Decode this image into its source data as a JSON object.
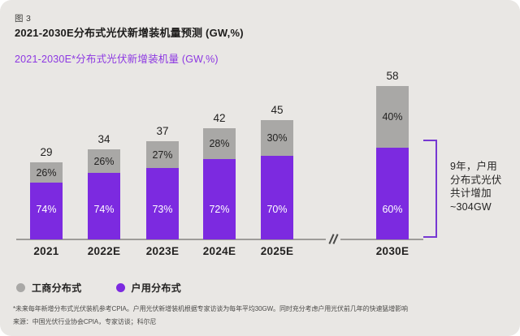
{
  "figure_label": "图 3",
  "title": "2021-2030E分布式光伏新增装机量预测 (GW,%)",
  "subtitle": "2021-2030E*分布式光伏新增装机量 (GW,%)",
  "chart_data": {
    "type": "bar",
    "stacked": true,
    "categories": [
      "2021",
      "2022E",
      "2023E",
      "2024E",
      "2025E",
      "2030E"
    ],
    "totals": [
      29,
      34,
      37,
      42,
      45,
      58
    ],
    "series": [
      {
        "name": "户用分布式",
        "color": "#7c2ae0",
        "pct": [
          74,
          74,
          73,
          72,
          70,
          60
        ]
      },
      {
        "name": "工商分布式",
        "color": "#a9a8a6",
        "pct": [
          26,
          26,
          27,
          28,
          30,
          40
        ]
      }
    ],
    "unit": "GW",
    "value_axis_hidden": true,
    "axis_break_between": [
      "2025E",
      "2030E"
    ],
    "legend_position": "bottom-left",
    "annotation_text": "9年，户用分布式光伏共计增加~304GW"
  },
  "annotation": {
    "text": "9年，户用\n分布式光伏\n共计增加\n~304GW"
  },
  "legend": [
    {
      "label": "工商分布式",
      "color": "#a9a8a6"
    },
    {
      "label": "户用分布式",
      "color": "#7c2ae0"
    }
  ],
  "footnotes": {
    "line1": "*未来每年新增分布式光伏装机参考CPIA。户用光伏新增装机根据专家访谈为每年平均30GW。同时充分考虑户用光伏前几年的快速猛增影响",
    "line2": "来源：中国光伏行业协会CPIA，专家访谈；科尔尼"
  },
  "colors": {
    "background": "#e9e7e4",
    "household_purple": "#7c2ae0",
    "commercial_gray": "#a9a8a6",
    "subtitle_purple": "#8d38e2",
    "bracket_purple": "#7638d2",
    "text_dark": "#232221",
    "axis_gray": "#9e9c99"
  }
}
